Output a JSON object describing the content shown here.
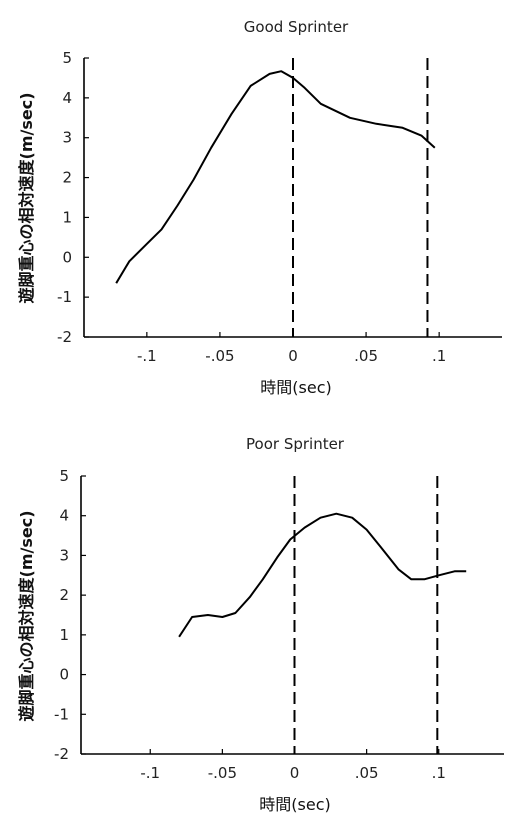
{
  "chart_data": [
    {
      "type": "line",
      "title": "Good Sprinter",
      "xlabel": "時間(sec)",
      "ylabel": "遊脚重心の相対速度(m/sec)",
      "xlim": [
        -0.143,
        0.143
      ],
      "ylim": [
        -2,
        5
      ],
      "xticks": [
        -0.1,
        -0.05,
        0,
        0.05,
        0.1
      ],
      "xtick_labels": [
        "-.1",
        "-.05",
        "0",
        ".05",
        ".1"
      ],
      "yticks": [
        -2,
        -1,
        0,
        1,
        2,
        3,
        4,
        5
      ],
      "ytick_labels": [
        "-2",
        "-1",
        "0",
        "1",
        "2",
        "3",
        "4",
        "5"
      ],
      "vlines": [
        0,
        0.092
      ],
      "grid": false,
      "series": [
        {
          "x": [
            -0.121,
            -0.112,
            -0.101,
            -0.09,
            -0.079,
            -0.068,
            -0.056,
            -0.042,
            -0.029,
            -0.016,
            -0.008,
            0.0,
            0.008,
            0.019,
            0.039,
            0.057,
            0.075,
            0.088,
            0.097
          ],
          "y": [
            -0.65,
            -0.1,
            0.3,
            0.7,
            1.3,
            1.95,
            2.75,
            3.6,
            4.3,
            4.6,
            4.67,
            4.5,
            4.25,
            3.85,
            3.5,
            3.35,
            3.25,
            3.05,
            2.75
          ]
        }
      ]
    },
    {
      "type": "line",
      "title": "Poor Sprinter",
      "xlabel": "時間(sec)",
      "ylabel": "遊脚重心の相対速度(m/sec)",
      "xlim": [
        -0.148,
        0.148
      ],
      "ylim": [
        -2,
        5
      ],
      "xticks": [
        -0.1,
        -0.05,
        0,
        0.05,
        0.1
      ],
      "xtick_labels": [
        "-.1",
        "-.05",
        "0",
        ".05",
        ".1"
      ],
      "yticks": [
        -2,
        -1,
        0,
        1,
        2,
        3,
        4,
        5
      ],
      "ytick_labels": [
        "-2",
        "-1",
        "0",
        "1",
        "2",
        "3",
        "4",
        "5"
      ],
      "vlines": [
        0,
        0.099
      ],
      "grid": false,
      "series": [
        {
          "x": [
            -0.08,
            -0.071,
            -0.06,
            -0.05,
            -0.041,
            -0.031,
            -0.022,
            -0.012,
            -0.003,
            0.007,
            0.018,
            0.029,
            0.04,
            0.05,
            0.06,
            0.072,
            0.081,
            0.09,
            0.1,
            0.111,
            0.119
          ],
          "y": [
            0.95,
            1.45,
            1.5,
            1.45,
            1.55,
            1.95,
            2.4,
            2.95,
            3.4,
            3.7,
            3.95,
            4.05,
            3.95,
            3.65,
            3.2,
            2.65,
            2.4,
            2.4,
            2.5,
            2.6,
            2.6
          ]
        }
      ]
    }
  ]
}
